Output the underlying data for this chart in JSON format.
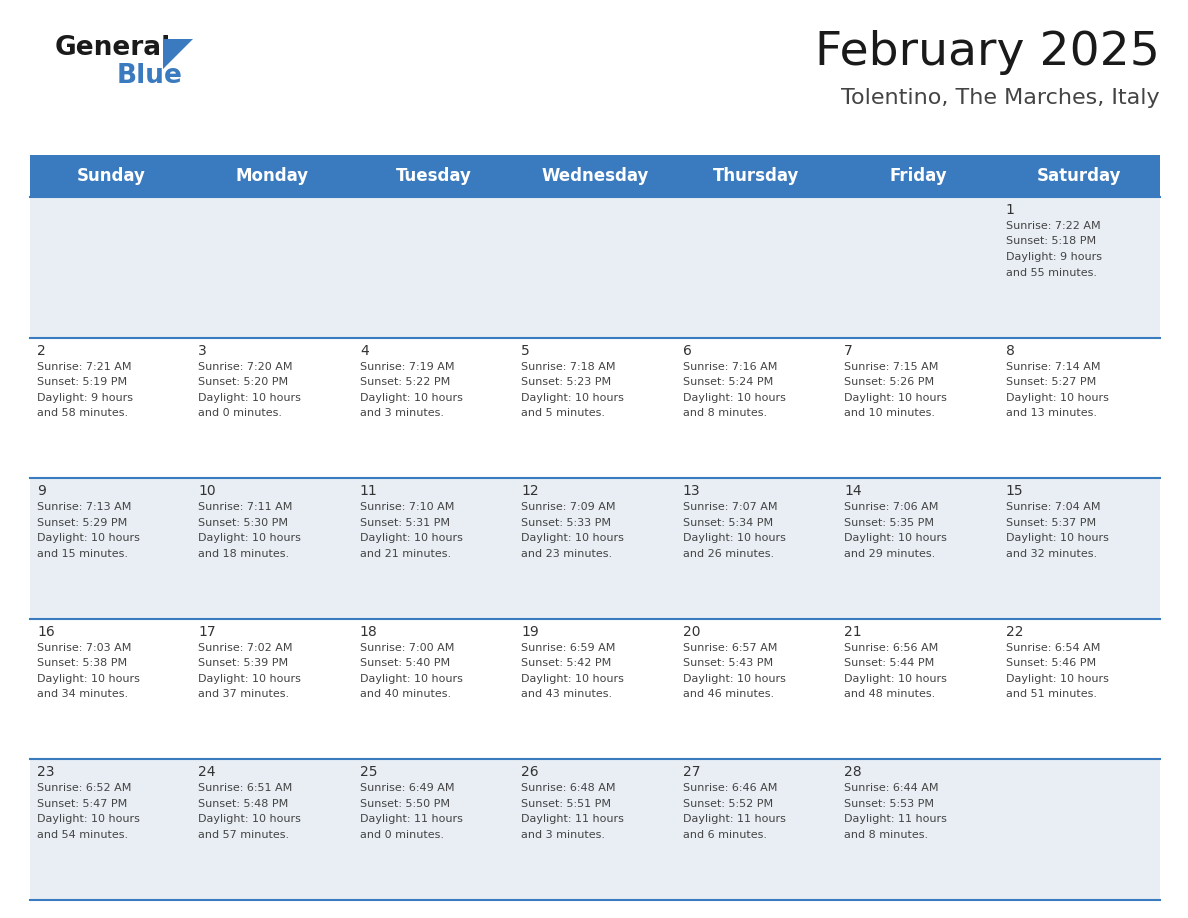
{
  "title": "February 2025",
  "subtitle": "Tolentino, The Marches, Italy",
  "header_color": "#3a7abf",
  "header_text_color": "#ffffff",
  "bg_color": "#ffffff",
  "cell_bg_odd": "#e8eef4",
  "cell_bg_even": "#ffffff",
  "day_names": [
    "Sunday",
    "Monday",
    "Tuesday",
    "Wednesday",
    "Thursday",
    "Friday",
    "Saturday"
  ],
  "title_fontsize": 34,
  "subtitle_fontsize": 16,
  "header_fontsize": 12,
  "date_fontsize": 10,
  "info_fontsize": 8,
  "days": [
    {
      "day": 1,
      "col": 6,
      "row": 0,
      "sunrise": "7:22 AM",
      "sunset": "5:18 PM",
      "dl1": "Daylight: 9 hours",
      "dl2": "and 55 minutes."
    },
    {
      "day": 2,
      "col": 0,
      "row": 1,
      "sunrise": "7:21 AM",
      "sunset": "5:19 PM",
      "dl1": "Daylight: 9 hours",
      "dl2": "and 58 minutes."
    },
    {
      "day": 3,
      "col": 1,
      "row": 1,
      "sunrise": "7:20 AM",
      "sunset": "5:20 PM",
      "dl1": "Daylight: 10 hours",
      "dl2": "and 0 minutes."
    },
    {
      "day": 4,
      "col": 2,
      "row": 1,
      "sunrise": "7:19 AM",
      "sunset": "5:22 PM",
      "dl1": "Daylight: 10 hours",
      "dl2": "and 3 minutes."
    },
    {
      "day": 5,
      "col": 3,
      "row": 1,
      "sunrise": "7:18 AM",
      "sunset": "5:23 PM",
      "dl1": "Daylight: 10 hours",
      "dl2": "and 5 minutes."
    },
    {
      "day": 6,
      "col": 4,
      "row": 1,
      "sunrise": "7:16 AM",
      "sunset": "5:24 PM",
      "dl1": "Daylight: 10 hours",
      "dl2": "and 8 minutes."
    },
    {
      "day": 7,
      "col": 5,
      "row": 1,
      "sunrise": "7:15 AM",
      "sunset": "5:26 PM",
      "dl1": "Daylight: 10 hours",
      "dl2": "and 10 minutes."
    },
    {
      "day": 8,
      "col": 6,
      "row": 1,
      "sunrise": "7:14 AM",
      "sunset": "5:27 PM",
      "dl1": "Daylight: 10 hours",
      "dl2": "and 13 minutes."
    },
    {
      "day": 9,
      "col": 0,
      "row": 2,
      "sunrise": "7:13 AM",
      "sunset": "5:29 PM",
      "dl1": "Daylight: 10 hours",
      "dl2": "and 15 minutes."
    },
    {
      "day": 10,
      "col": 1,
      "row": 2,
      "sunrise": "7:11 AM",
      "sunset": "5:30 PM",
      "dl1": "Daylight: 10 hours",
      "dl2": "and 18 minutes."
    },
    {
      "day": 11,
      "col": 2,
      "row": 2,
      "sunrise": "7:10 AM",
      "sunset": "5:31 PM",
      "dl1": "Daylight: 10 hours",
      "dl2": "and 21 minutes."
    },
    {
      "day": 12,
      "col": 3,
      "row": 2,
      "sunrise": "7:09 AM",
      "sunset": "5:33 PM",
      "dl1": "Daylight: 10 hours",
      "dl2": "and 23 minutes."
    },
    {
      "day": 13,
      "col": 4,
      "row": 2,
      "sunrise": "7:07 AM",
      "sunset": "5:34 PM",
      "dl1": "Daylight: 10 hours",
      "dl2": "and 26 minutes."
    },
    {
      "day": 14,
      "col": 5,
      "row": 2,
      "sunrise": "7:06 AM",
      "sunset": "5:35 PM",
      "dl1": "Daylight: 10 hours",
      "dl2": "and 29 minutes."
    },
    {
      "day": 15,
      "col": 6,
      "row": 2,
      "sunrise": "7:04 AM",
      "sunset": "5:37 PM",
      "dl1": "Daylight: 10 hours",
      "dl2": "and 32 minutes."
    },
    {
      "day": 16,
      "col": 0,
      "row": 3,
      "sunrise": "7:03 AM",
      "sunset": "5:38 PM",
      "dl1": "Daylight: 10 hours",
      "dl2": "and 34 minutes."
    },
    {
      "day": 17,
      "col": 1,
      "row": 3,
      "sunrise": "7:02 AM",
      "sunset": "5:39 PM",
      "dl1": "Daylight: 10 hours",
      "dl2": "and 37 minutes."
    },
    {
      "day": 18,
      "col": 2,
      "row": 3,
      "sunrise": "7:00 AM",
      "sunset": "5:40 PM",
      "dl1": "Daylight: 10 hours",
      "dl2": "and 40 minutes."
    },
    {
      "day": 19,
      "col": 3,
      "row": 3,
      "sunrise": "6:59 AM",
      "sunset": "5:42 PM",
      "dl1": "Daylight: 10 hours",
      "dl2": "and 43 minutes."
    },
    {
      "day": 20,
      "col": 4,
      "row": 3,
      "sunrise": "6:57 AM",
      "sunset": "5:43 PM",
      "dl1": "Daylight: 10 hours",
      "dl2": "and 46 minutes."
    },
    {
      "day": 21,
      "col": 5,
      "row": 3,
      "sunrise": "6:56 AM",
      "sunset": "5:44 PM",
      "dl1": "Daylight: 10 hours",
      "dl2": "and 48 minutes."
    },
    {
      "day": 22,
      "col": 6,
      "row": 3,
      "sunrise": "6:54 AM",
      "sunset": "5:46 PM",
      "dl1": "Daylight: 10 hours",
      "dl2": "and 51 minutes."
    },
    {
      "day": 23,
      "col": 0,
      "row": 4,
      "sunrise": "6:52 AM",
      "sunset": "5:47 PM",
      "dl1": "Daylight: 10 hours",
      "dl2": "and 54 minutes."
    },
    {
      "day": 24,
      "col": 1,
      "row": 4,
      "sunrise": "6:51 AM",
      "sunset": "5:48 PM",
      "dl1": "Daylight: 10 hours",
      "dl2": "and 57 minutes."
    },
    {
      "day": 25,
      "col": 2,
      "row": 4,
      "sunrise": "6:49 AM",
      "sunset": "5:50 PM",
      "dl1": "Daylight: 11 hours",
      "dl2": "and 0 minutes."
    },
    {
      "day": 26,
      "col": 3,
      "row": 4,
      "sunrise": "6:48 AM",
      "sunset": "5:51 PM",
      "dl1": "Daylight: 11 hours",
      "dl2": "and 3 minutes."
    },
    {
      "day": 27,
      "col": 4,
      "row": 4,
      "sunrise": "6:46 AM",
      "sunset": "5:52 PM",
      "dl1": "Daylight: 11 hours",
      "dl2": "and 6 minutes."
    },
    {
      "day": 28,
      "col": 5,
      "row": 4,
      "sunrise": "6:44 AM",
      "sunset": "5:53 PM",
      "dl1": "Daylight: 11 hours",
      "dl2": "and 8 minutes."
    }
  ]
}
